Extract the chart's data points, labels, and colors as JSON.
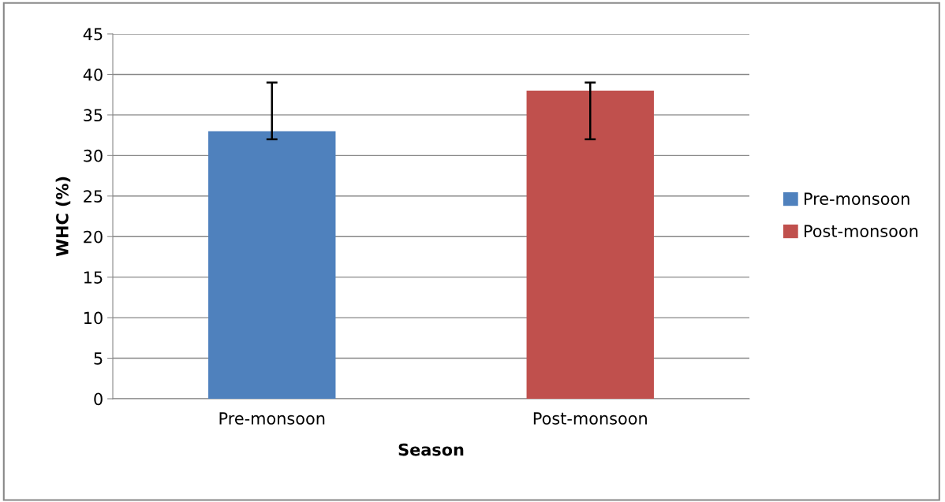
{
  "chart_data": {
    "type": "bar",
    "xlabel": "Season",
    "ylabel": "WHC (%)",
    "categories": [
      "Pre-monsoon",
      "Post-monsoon"
    ],
    "series": [
      {
        "name": "Pre-monsoon",
        "color": "#4f81bd",
        "values": [
          33,
          null
        ],
        "errors": [
          [
            32,
            39
          ],
          null
        ]
      },
      {
        "name": "Post-monsoon",
        "color": "#c0504d",
        "values": [
          null,
          38
        ],
        "errors": [
          null,
          [
            32,
            39
          ]
        ]
      }
    ],
    "ylim": [
      0,
      45
    ],
    "yticks": [
      0,
      5,
      10,
      15,
      20,
      25,
      30,
      35,
      40,
      45
    ],
    "grid": "y",
    "legend": "right"
  }
}
